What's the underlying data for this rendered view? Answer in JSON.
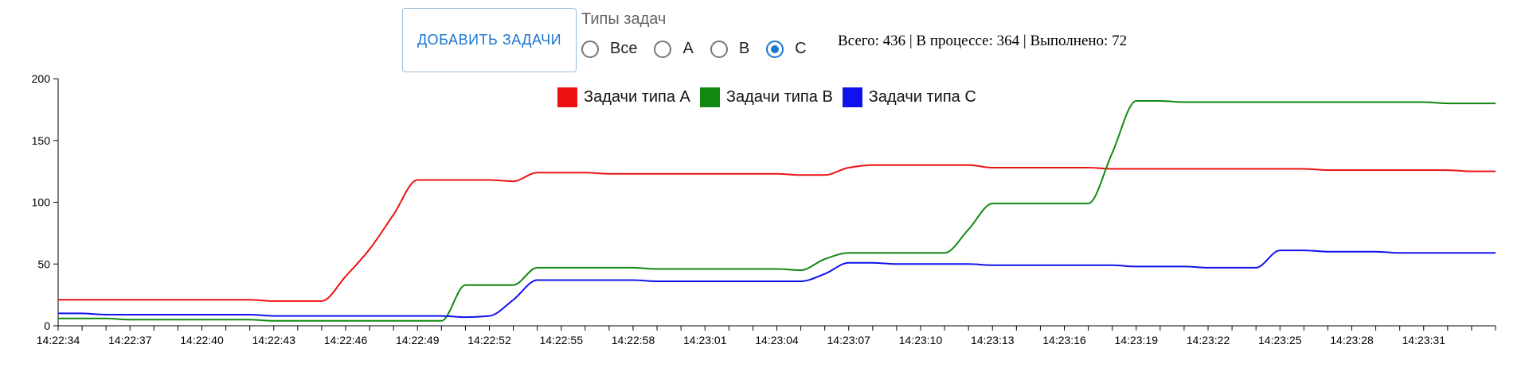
{
  "controls": {
    "add_button_label": "ДОБАВИТЬ ЗАДАЧИ",
    "filter_label": "Типы задач",
    "options": [
      {
        "label": "Все",
        "selected": false
      },
      {
        "label": "A",
        "selected": false
      },
      {
        "label": "B",
        "selected": false
      },
      {
        "label": "C",
        "selected": true
      }
    ],
    "accent_color": "#1976d2"
  },
  "stats": {
    "text": "Всего: 436 | В процессе: 364 | Выполнено: 72"
  },
  "chart_data": {
    "type": "line",
    "title": "",
    "xlabel": "",
    "ylabel": "",
    "ylim": [
      0,
      200
    ],
    "yticks": [
      0,
      50,
      100,
      150,
      200
    ],
    "xlim": [
      "14:22:34",
      "14:23:34"
    ],
    "xtick_labels": [
      "14:22:34",
      "14:22:37",
      "14:22:40",
      "14:22:43",
      "14:22:46",
      "14:22:49",
      "14:22:52",
      "14:22:55",
      "14:22:58",
      "14:23:01",
      "14:23:04",
      "14:23:07",
      "14:23:10",
      "14:23:13",
      "14:23:16",
      "14:23:19",
      "14:23:22",
      "14:23:25",
      "14:23:28",
      "14:23:31"
    ],
    "legend_position": "top-center",
    "grid": false,
    "series": [
      {
        "name": "Задачи типа A",
        "color": "#ee1111",
        "points": [
          [
            "14:22:34",
            21
          ],
          [
            "14:22:42",
            21
          ],
          [
            "14:22:43",
            20
          ],
          [
            "14:22:45",
            20
          ],
          [
            "14:22:46",
            40
          ],
          [
            "14:22:47",
            62
          ],
          [
            "14:22:48",
            90
          ],
          [
            "14:22:49",
            118
          ],
          [
            "14:22:52",
            118
          ],
          [
            "14:22:53",
            117
          ],
          [
            "14:22:54",
            124
          ],
          [
            "14:22:56",
            124
          ],
          [
            "14:22:57",
            123
          ],
          [
            "14:23:04",
            123
          ],
          [
            "14:23:05",
            122
          ],
          [
            "14:23:06",
            122
          ],
          [
            "14:23:07",
            128
          ],
          [
            "14:23:08",
            130
          ],
          [
            "14:23:12",
            130
          ],
          [
            "14:23:13",
            128
          ],
          [
            "14:23:17",
            128
          ],
          [
            "14:23:18",
            127
          ],
          [
            "14:23:26",
            127
          ],
          [
            "14:23:27",
            126
          ],
          [
            "14:23:32",
            126
          ],
          [
            "14:23:33",
            125
          ],
          [
            "14:23:34",
            125
          ]
        ]
      },
      {
        "name": "Задачи типа B",
        "color": "#118811",
        "points": [
          [
            "14:22:34",
            6
          ],
          [
            "14:22:36",
            6
          ],
          [
            "14:22:37",
            5
          ],
          [
            "14:22:42",
            5
          ],
          [
            "14:22:43",
            4
          ],
          [
            "14:22:50",
            4
          ],
          [
            "14:22:51",
            33
          ],
          [
            "14:22:53",
            33
          ],
          [
            "14:22:54",
            47
          ],
          [
            "14:22:58",
            47
          ],
          [
            "14:22:59",
            46
          ],
          [
            "14:23:04",
            46
          ],
          [
            "14:23:05",
            45
          ],
          [
            "14:23:06",
            54
          ],
          [
            "14:23:07",
            59
          ],
          [
            "14:23:11",
            59
          ],
          [
            "14:23:12",
            78
          ],
          [
            "14:23:13",
            99
          ],
          [
            "14:23:15",
            99
          ],
          [
            "14:23:16",
            99
          ],
          [
            "14:23:17",
            99
          ],
          [
            "14:23:18",
            140
          ],
          [
            "14:23:19",
            182
          ],
          [
            "14:23:20",
            182
          ],
          [
            "14:23:21",
            181
          ],
          [
            "14:23:31",
            181
          ],
          [
            "14:23:32",
            180
          ],
          [
            "14:23:34",
            180
          ]
        ]
      },
      {
        "name": "Задачи типа C",
        "color": "#1111ee",
        "points": [
          [
            "14:22:34",
            10
          ],
          [
            "14:22:35",
            10
          ],
          [
            "14:22:36",
            9
          ],
          [
            "14:22:42",
            9
          ],
          [
            "14:22:43",
            8
          ],
          [
            "14:22:50",
            8
          ],
          [
            "14:22:51",
            7
          ],
          [
            "14:22:52",
            8
          ],
          [
            "14:22:53",
            21
          ],
          [
            "14:22:54",
            37
          ],
          [
            "14:22:58",
            37
          ],
          [
            "14:22:59",
            36
          ],
          [
            "14:23:05",
            36
          ],
          [
            "14:23:06",
            42
          ],
          [
            "14:23:07",
            51
          ],
          [
            "14:23:08",
            51
          ],
          [
            "14:23:09",
            50
          ],
          [
            "14:23:12",
            50
          ],
          [
            "14:23:13",
            49
          ],
          [
            "14:23:18",
            49
          ],
          [
            "14:23:19",
            48
          ],
          [
            "14:23:21",
            48
          ],
          [
            "14:23:22",
            47
          ],
          [
            "14:23:24",
            47
          ],
          [
            "14:23:25",
            61
          ],
          [
            "14:23:26",
            61
          ],
          [
            "14:23:27",
            60
          ],
          [
            "14:23:29",
            60
          ],
          [
            "14:23:30",
            59
          ],
          [
            "14:23:34",
            59
          ]
        ]
      }
    ]
  }
}
